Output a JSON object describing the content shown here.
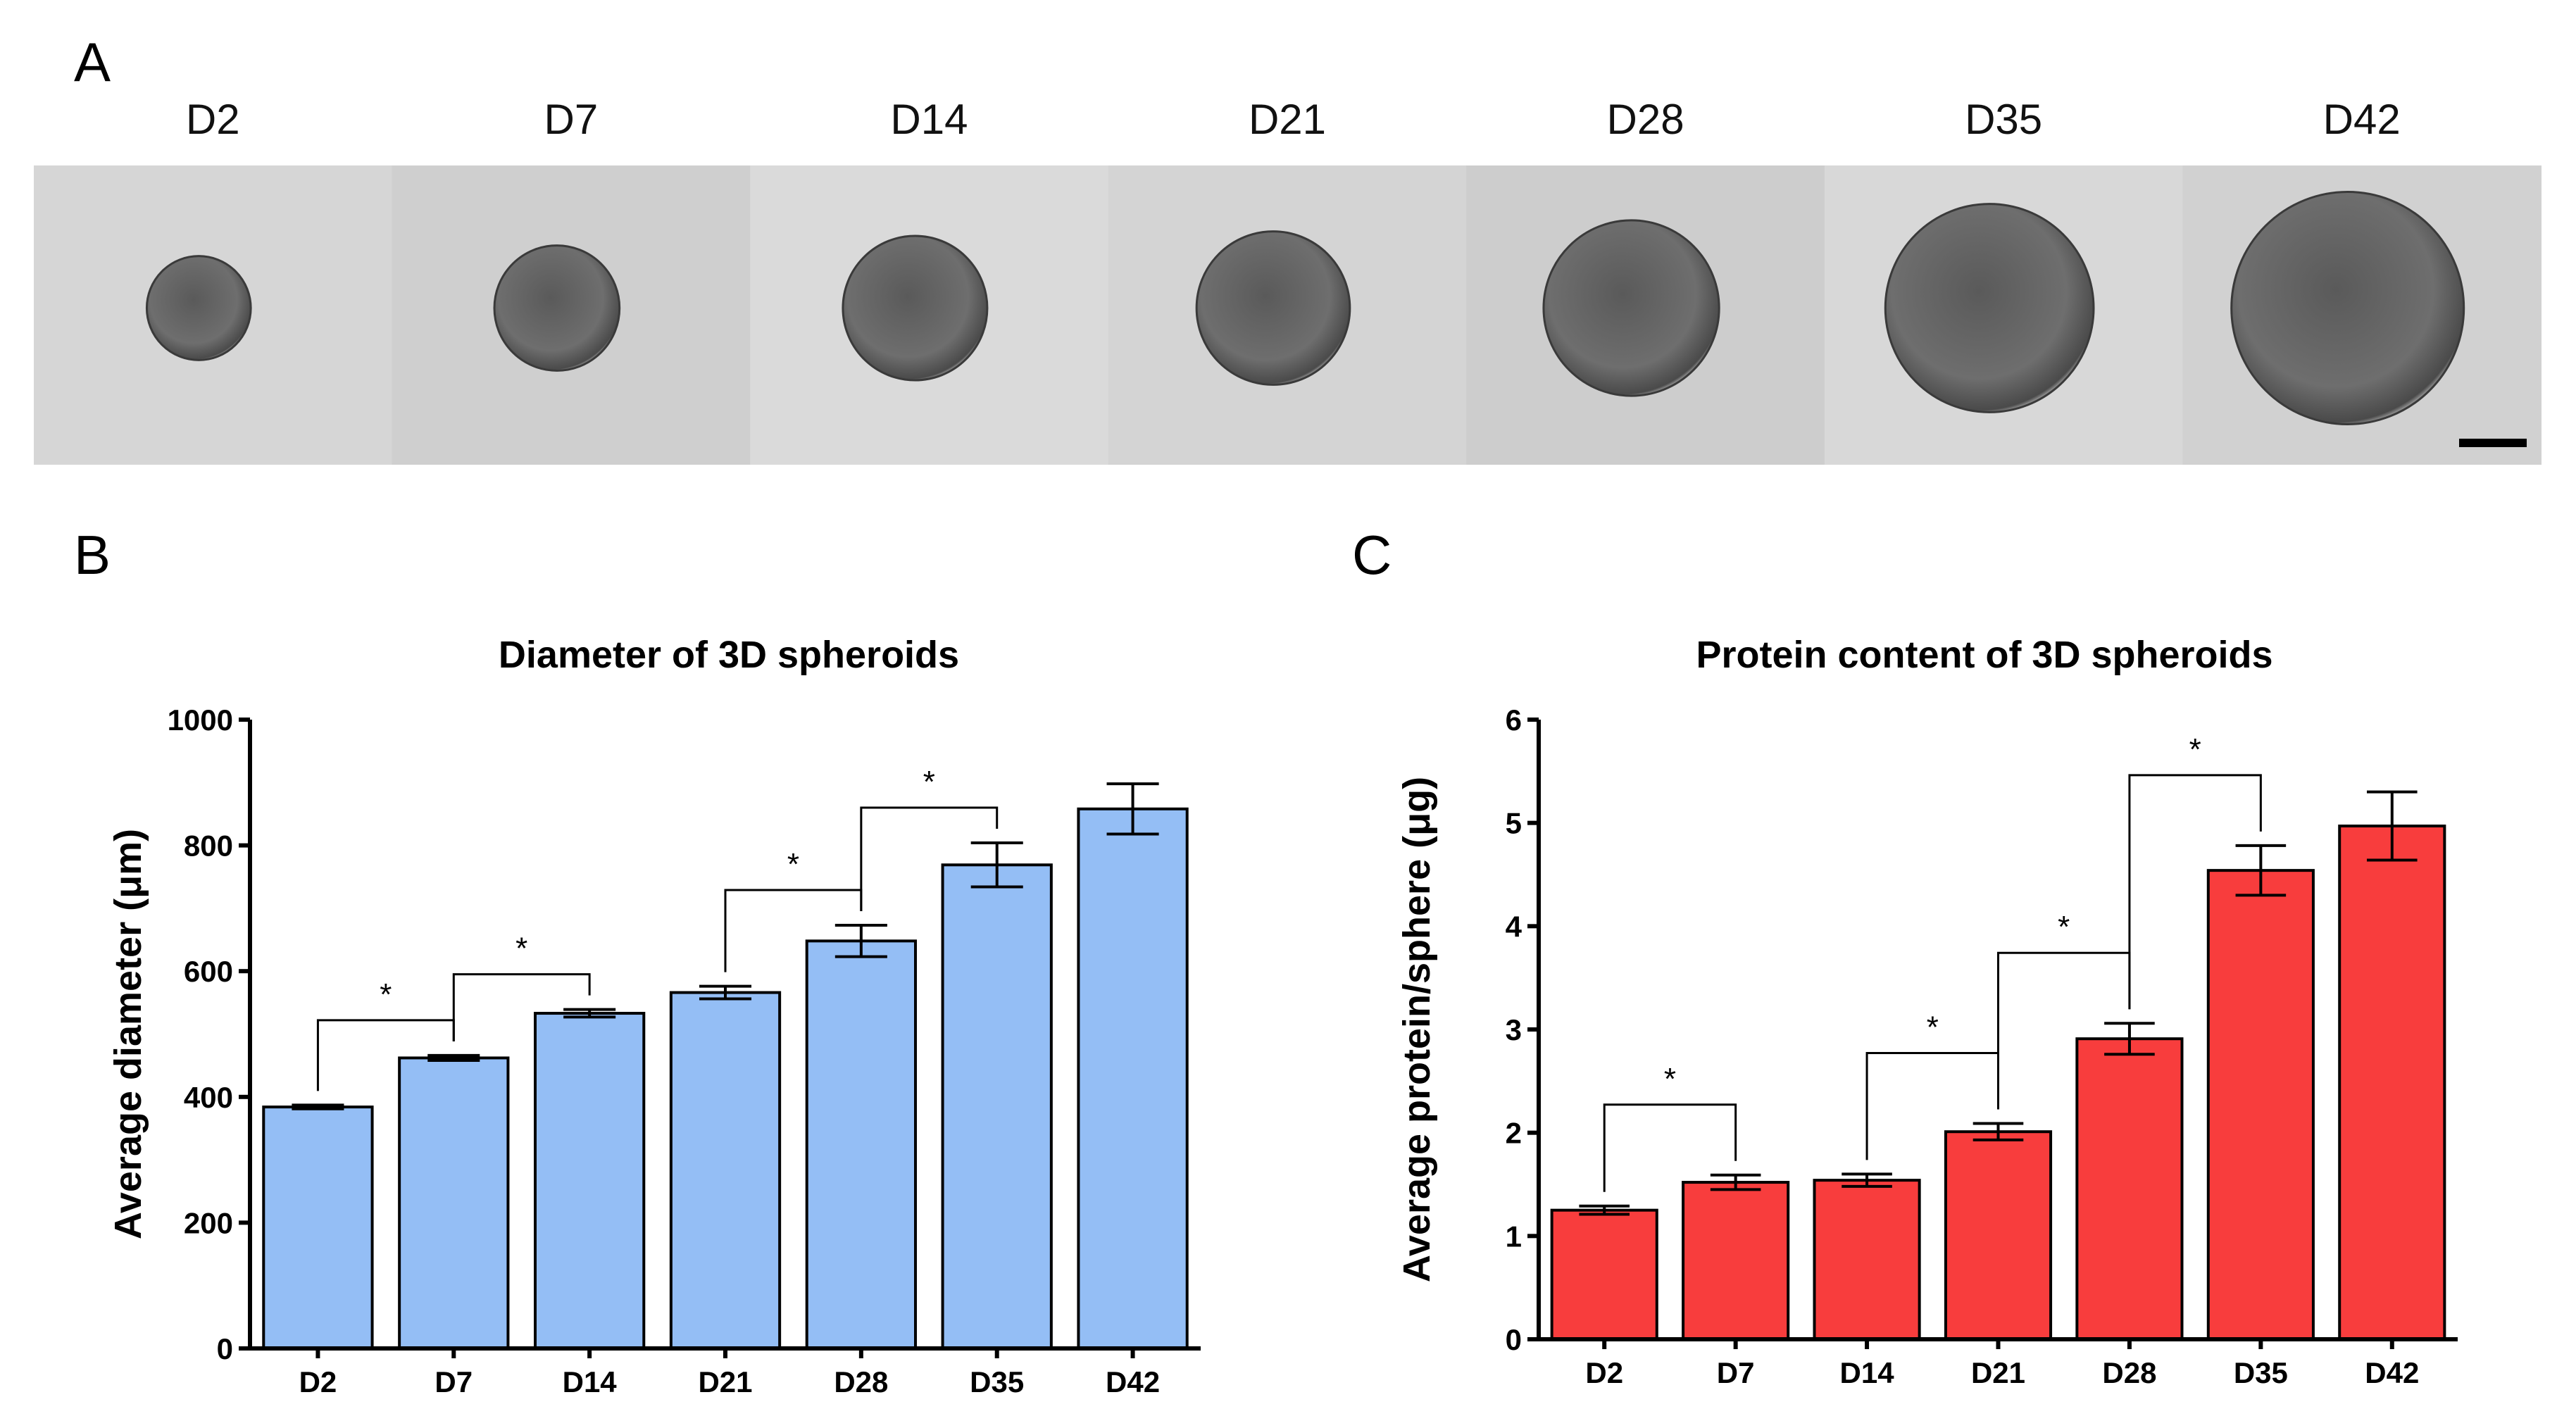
{
  "panels": {
    "a": "A",
    "b": "B",
    "c": "C"
  },
  "image_strip": {
    "days": [
      "D2",
      "D7",
      "D14",
      "D21",
      "D28",
      "D35",
      "D42"
    ],
    "spheroid_sizes": [
      384,
      462,
      533,
      566,
      648,
      769,
      858
    ],
    "scale_bar": "scale-bar"
  },
  "chart_data": [
    {
      "type": "bar",
      "title": "Diameter of 3D spheroids",
      "xlabel": "",
      "ylabel": "Average diameter (μm)",
      "categories": [
        "D2",
        "D7",
        "D14",
        "D21",
        "D28",
        "D35",
        "D42"
      ],
      "values": [
        384,
        462,
        533,
        566,
        648,
        769,
        858
      ],
      "errors": [
        3,
        4,
        6,
        10,
        25,
        35,
        40
      ],
      "ylim": [
        0,
        1000
      ],
      "yticks": [
        "0",
        "200",
        "400",
        "600",
        "800",
        "1000"
      ],
      "color": "#94bef5",
      "significance": [
        {
          "from": 0,
          "to": 1,
          "label": "*"
        },
        {
          "from": 1,
          "to": 2,
          "label": "*"
        },
        {
          "from": 3,
          "to": 4,
          "label": "*"
        },
        {
          "from": 4,
          "to": 5,
          "label": "*"
        }
      ]
    },
    {
      "type": "bar",
      "title": "Protein content of 3D spheroids",
      "xlabel": "",
      "ylabel": "Average protein/sphere (μg)",
      "categories": [
        "D2",
        "D7",
        "D14",
        "D21",
        "D28",
        "D35",
        "D42"
      ],
      "values": [
        1.25,
        1.52,
        1.54,
        2.01,
        2.91,
        4.54,
        4.97
      ],
      "errors": [
        0.04,
        0.07,
        0.06,
        0.08,
        0.15,
        0.24,
        0.33
      ],
      "ylim": [
        0,
        6
      ],
      "yticks": [
        "0",
        "1",
        "2",
        "3",
        "4",
        "5",
        "6"
      ],
      "color": "#f83d3d",
      "significance": [
        {
          "from": 0,
          "to": 1,
          "label": "*"
        },
        {
          "from": 2,
          "to": 3,
          "label": "*"
        },
        {
          "from": 3,
          "to": 4,
          "label": "*"
        },
        {
          "from": 4,
          "to": 5,
          "label": "*"
        }
      ]
    }
  ]
}
